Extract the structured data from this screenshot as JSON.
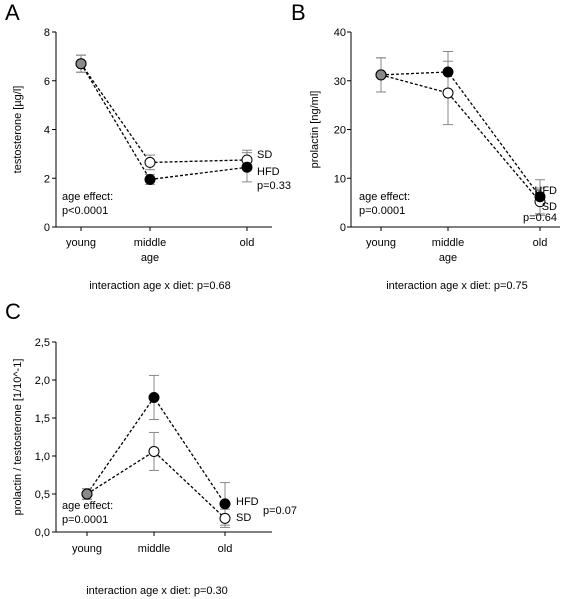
{
  "figure": {
    "panels": [
      {
        "letter": "A",
        "ylabel": "testosterone [µg/l]",
        "yticks": [
          "0",
          "2",
          "4",
          "6",
          "8"
        ],
        "xticks": [
          [
            "young"
          ],
          [
            "middle",
            "age"
          ],
          [
            "old"
          ]
        ],
        "effect_lines": [
          "age effect:",
          "p<0.0001"
        ],
        "interaction": "interaction age x diet: p=0.68",
        "legend": [
          {
            "series": "SD",
            "label": "SD",
            "extra": ""
          },
          {
            "series": "HFD",
            "label": "HFD",
            "extra": "p=0.33"
          }
        ]
      },
      {
        "letter": "B",
        "ylabel": "prolactin [ng/ml]",
        "yticks": [
          "0",
          "10",
          "20",
          "30",
          "40"
        ],
        "xticks": [
          [
            "young"
          ],
          [
            "middle",
            "age"
          ],
          [
            "old"
          ]
        ],
        "effect_lines": [
          "age effect:",
          "p=0.0001"
        ],
        "interaction": "interaction age x diet: p=0.75",
        "legend": [
          {
            "series": "HFD",
            "label": "HFD",
            "extra": ""
          },
          {
            "series": "SD",
            "label": "SD",
            "extra": "p=0.64"
          }
        ]
      },
      {
        "letter": "C",
        "ylabel": "prolactin / testosterone [1/10^-1]",
        "yticks": [
          "0,0",
          "0,5",
          "1,0",
          "1,5",
          "2,0",
          "2,5"
        ],
        "xticks": [
          [
            "young"
          ],
          [
            "middle"
          ],
          [
            "old"
          ]
        ],
        "effect_lines": [
          "age effect:",
          "p=0.0001"
        ],
        "interaction": "interaction age x diet: p=0.30",
        "legend": [
          {
            "series": "HFD",
            "label": "HFD",
            "extra": ""
          },
          {
            "series": "SD",
            "label": "SD",
            "extra": ""
          }
        ],
        "side_p": "p=0.07"
      }
    ]
  },
  "chart_data": [
    {
      "type": "line",
      "title": "",
      "ylabel": "testosterone [µg/l]",
      "categories": [
        "young",
        "middle age",
        "old"
      ],
      "ylim": [
        0,
        8
      ],
      "grid": false,
      "legend_placement": "right",
      "series": [
        {
          "name": "SD",
          "marker": "open",
          "values": [
            6.7,
            2.65,
            2.75
          ],
          "errors": [
            0.35,
            0.3,
            0.4
          ]
        },
        {
          "name": "HFD",
          "marker": "filled",
          "values": [
            6.7,
            1.95,
            2.45
          ],
          "errors": [
            0.35,
            0.2,
            0.6
          ]
        }
      ],
      "annotations": [
        "age effect: p<0.0001",
        "p=0.33",
        "interaction age x diet: p=0.68"
      ]
    },
    {
      "type": "line",
      "title": "",
      "ylabel": "prolactin [ng/ml]",
      "categories": [
        "young",
        "middle age",
        "old"
      ],
      "ylim": [
        0,
        40
      ],
      "grid": false,
      "legend_placement": "right",
      "series": [
        {
          "name": "HFD",
          "marker": "filled",
          "values": [
            31.2,
            31.8,
            6.2
          ],
          "errors": [
            3.5,
            4.2,
            3.5
          ]
        },
        {
          "name": "SD",
          "marker": "open",
          "values": [
            31.2,
            27.5,
            5.2
          ],
          "errors": [
            3.5,
            6.5,
            2.8
          ]
        }
      ],
      "annotations": [
        "age effect: p=0.0001",
        "p=0.64",
        "interaction age x diet: p=0.75"
      ]
    },
    {
      "type": "line",
      "title": "",
      "ylabel": "prolactin / testosterone [1/10^-1]",
      "categories": [
        "young",
        "middle",
        "old"
      ],
      "ylim": [
        0,
        2.5
      ],
      "grid": false,
      "legend_placement": "right",
      "series": [
        {
          "name": "HFD",
          "marker": "filled",
          "values": [
            0.5,
            1.77,
            0.37
          ],
          "errors": [
            0.07,
            0.29,
            0.28
          ]
        },
        {
          "name": "SD",
          "marker": "open",
          "values": [
            0.5,
            1.06,
            0.18
          ],
          "errors": [
            0.07,
            0.25,
            0.12
          ]
        }
      ],
      "annotations": [
        "age effect: p=0.0001",
        "p=0.07",
        "interaction age x diet: p=0.30"
      ]
    }
  ]
}
